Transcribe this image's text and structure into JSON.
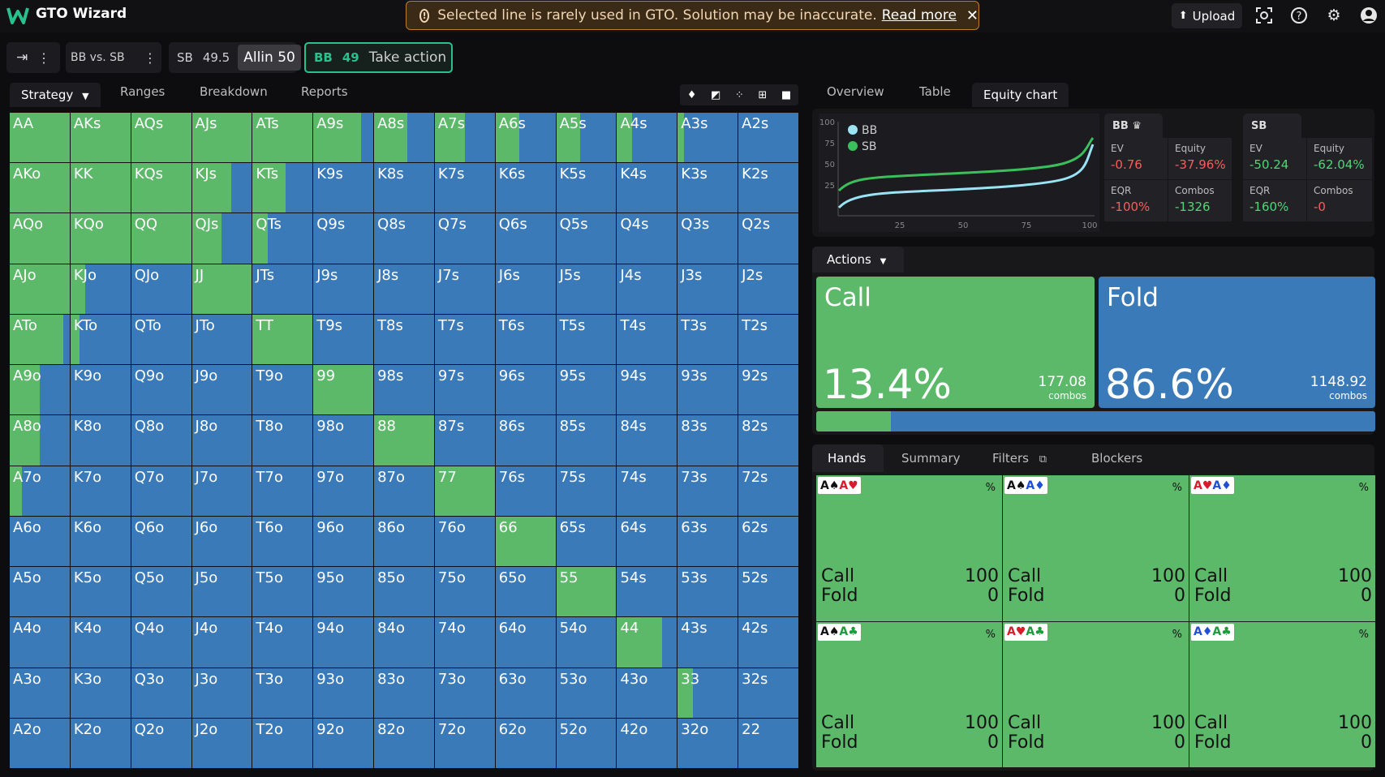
{
  "header": {
    "app_title": "GTO Wizard",
    "warning_text": "Selected line is rarely used in GTO. Solution may be inaccurate.",
    "warning_link": "Read more",
    "upload_label": "Upload"
  },
  "nav": {
    "matchup": "BB vs. SB",
    "sb_label": "SB",
    "sb_stack": "49.5",
    "allin_label": "Allin 50",
    "bb_label": "BB",
    "bb_stack": "49",
    "take_action": "Take action"
  },
  "left_tabs": [
    "Strategy",
    "Ranges",
    "Breakdown",
    "Reports"
  ],
  "right_tabs": [
    "Overview",
    "Table",
    "Equity chart"
  ],
  "matrix": {
    "labels": [
      [
        "AA",
        "AKs",
        "AQs",
        "AJs",
        "ATs",
        "A9s",
        "A8s",
        "A7s",
        "A6s",
        "A5s",
        "A4s",
        "A3s",
        "A2s"
      ],
      [
        "AKo",
        "KK",
        "KQs",
        "KJs",
        "KTs",
        "K9s",
        "K8s",
        "K7s",
        "K6s",
        "K5s",
        "K4s",
        "K3s",
        "K2s"
      ],
      [
        "AQo",
        "KQo",
        "QQ",
        "QJs",
        "QTs",
        "Q9s",
        "Q8s",
        "Q7s",
        "Q6s",
        "Q5s",
        "Q4s",
        "Q3s",
        "Q2s"
      ],
      [
        "AJo",
        "KJo",
        "QJo",
        "JJ",
        "JTs",
        "J9s",
        "J8s",
        "J7s",
        "J6s",
        "J5s",
        "J4s",
        "J3s",
        "J2s"
      ],
      [
        "ATo",
        "KTo",
        "QTo",
        "JTo",
        "TT",
        "T9s",
        "T8s",
        "T7s",
        "T6s",
        "T5s",
        "T4s",
        "T3s",
        "T2s"
      ],
      [
        "A9o",
        "K9o",
        "Q9o",
        "J9o",
        "T9o",
        "99",
        "98s",
        "97s",
        "96s",
        "95s",
        "94s",
        "93s",
        "92s"
      ],
      [
        "A8o",
        "K8o",
        "Q8o",
        "J8o",
        "T8o",
        "98o",
        "88",
        "87s",
        "86s",
        "85s",
        "84s",
        "83s",
        "82s"
      ],
      [
        "A7o",
        "K7o",
        "Q7o",
        "J7o",
        "T7o",
        "97o",
        "87o",
        "77",
        "76s",
        "75s",
        "74s",
        "73s",
        "72s"
      ],
      [
        "A6o",
        "K6o",
        "Q6o",
        "J6o",
        "T6o",
        "96o",
        "86o",
        "76o",
        "66",
        "65s",
        "64s",
        "63s",
        "62s"
      ],
      [
        "A5o",
        "K5o",
        "Q5o",
        "J5o",
        "T5o",
        "95o",
        "85o",
        "75o",
        "65o",
        "55",
        "54s",
        "53s",
        "52s"
      ],
      [
        "A4o",
        "K4o",
        "Q4o",
        "J4o",
        "T4o",
        "94o",
        "84o",
        "74o",
        "64o",
        "54o",
        "44",
        "43s",
        "42s"
      ],
      [
        "A3o",
        "K3o",
        "Q3o",
        "J3o",
        "T3o",
        "93o",
        "83o",
        "73o",
        "63o",
        "53o",
        "43o",
        "33",
        "32s"
      ],
      [
        "A2o",
        "K2o",
        "Q2o",
        "J2o",
        "T2o",
        "92o",
        "82o",
        "72o",
        "62o",
        "52o",
        "42o",
        "32o",
        "22"
      ]
    ],
    "call_fraction": [
      [
        1,
        1,
        1,
        1,
        1,
        0.8,
        0.55,
        0.5,
        0.4,
        0.4,
        0.25,
        0.1,
        0
      ],
      [
        1,
        1,
        1,
        0.65,
        0.55,
        0,
        0,
        0,
        0,
        0,
        0,
        0,
        0
      ],
      [
        1,
        1,
        1,
        0.5,
        0.25,
        0,
        0,
        0,
        0,
        0,
        0,
        0,
        0
      ],
      [
        1,
        0.25,
        0,
        1,
        0,
        0,
        0,
        0,
        0,
        0,
        0,
        0,
        0
      ],
      [
        0.9,
        0.15,
        0,
        0,
        1,
        0,
        0,
        0,
        0,
        0,
        0,
        0,
        0
      ],
      [
        0.5,
        0,
        0,
        0,
        0,
        1,
        0,
        0,
        0,
        0,
        0,
        0,
        0
      ],
      [
        0.5,
        0,
        0,
        0,
        0,
        0,
        1,
        0,
        0,
        0,
        0,
        0,
        0
      ],
      [
        0.2,
        0,
        0,
        0,
        0,
        0,
        0,
        1,
        0,
        0,
        0,
        0,
        0
      ],
      [
        0,
        0,
        0,
        0,
        0,
        0,
        0,
        0,
        1,
        0,
        0,
        0,
        0
      ],
      [
        0,
        0,
        0,
        0,
        0,
        0,
        0,
        0,
        0,
        1,
        0,
        0,
        0
      ],
      [
        0,
        0,
        0,
        0,
        0,
        0,
        0,
        0,
        0,
        0,
        0.75,
        0,
        0
      ],
      [
        0,
        0,
        0,
        0,
        0,
        0,
        0,
        0,
        0,
        0,
        0,
        0.25,
        0
      ],
      [
        0,
        0,
        0,
        0,
        0,
        0,
        0,
        0,
        0,
        0,
        0,
        0,
        0
      ]
    ]
  },
  "equity_chart": {
    "y_ticks": [
      "100",
      "75",
      "50",
      "25"
    ],
    "x_ticks": [
      "25",
      "50",
      "75",
      "100"
    ],
    "legend": [
      "BB",
      "SB"
    ]
  },
  "bb_stats": {
    "title": "BB",
    "ev_label": "EV",
    "ev": "-0.76",
    "equity_label": "Equity",
    "equity": "-37.96%",
    "eqr_label": "EQR",
    "eqr": "-100%",
    "combos_label": "Combos",
    "combos": "-1326"
  },
  "sb_stats": {
    "title": "SB",
    "ev_label": "EV",
    "ev": "-50.24",
    "equity_label": "Equity",
    "equity": "-62.04%",
    "eqr_label": "EQR",
    "eqr": "-160%",
    "combos_label": "Combos",
    "combos": "-0"
  },
  "actions": {
    "header": "Actions",
    "call_label": "Call",
    "call_pct": "13.4%",
    "call_combos": "177.08",
    "call_frac": 0.134,
    "fold_label": "Fold",
    "fold_pct": "86.6%",
    "fold_combos": "1148.92",
    "combos_word": "combos"
  },
  "hands_tabs": [
    "Hands",
    "Summary",
    "Filters",
    "Blockers"
  ],
  "hands": [
    {
      "c1": "A♠",
      "c2": "A♥",
      "c1c": "#111",
      "c2c": "#d81c2c",
      "call": "100",
      "fold": "0"
    },
    {
      "c1": "A♠",
      "c2": "A♦",
      "c1c": "#111",
      "c2c": "#1d4fd8",
      "call": "100",
      "fold": "0"
    },
    {
      "c1": "A♥",
      "c2": "A♦",
      "c1c": "#d81c2c",
      "c2c": "#1d4fd8",
      "call": "100",
      "fold": "0"
    },
    {
      "c1": "A♠",
      "c2": "A♣",
      "c1c": "#111",
      "c2c": "#1a9c3a",
      "call": "100",
      "fold": "0"
    },
    {
      "c1": "A♥",
      "c2": "A♣",
      "c1c": "#d81c2c",
      "c2c": "#1a9c3a",
      "call": "100",
      "fold": "0"
    },
    {
      "c1": "A♦",
      "c2": "A♣",
      "c1c": "#1d4fd8",
      "c2c": "#1a9c3a",
      "call": "100",
      "fold": "0"
    }
  ],
  "hand_call_word": "Call",
  "hand_fold_word": "Fold",
  "hand_pct_symbol": "%",
  "colors": {
    "call": "#5db96a",
    "fold": "#3a7ab8",
    "accent": "#28c08c"
  }
}
